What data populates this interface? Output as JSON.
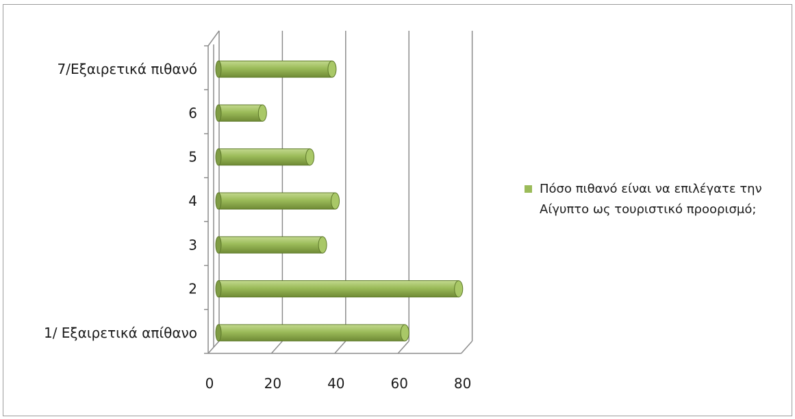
{
  "chart_data": {
    "type": "bar",
    "orientation": "horizontal",
    "three_d": true,
    "categories": [
      "1/ Εξαιρετικά απίθανο",
      "2",
      "3",
      "4",
      "5",
      "6",
      "7/Εξαιρετικά πιθανό"
    ],
    "series": [
      {
        "name": "Πόσο πιθανό είναι να επιλέγατε την Αίγυπτο ως τουριστικό προορισμό;",
        "values": [
          60,
          77,
          34,
          38,
          30,
          15,
          37
        ],
        "color": "#9bbb59"
      }
    ],
    "x_ticks": [
      "0",
      "20",
      "40",
      "60",
      "80"
    ],
    "xlim": [
      0,
      80
    ],
    "grid": true,
    "legend_position": "right"
  }
}
